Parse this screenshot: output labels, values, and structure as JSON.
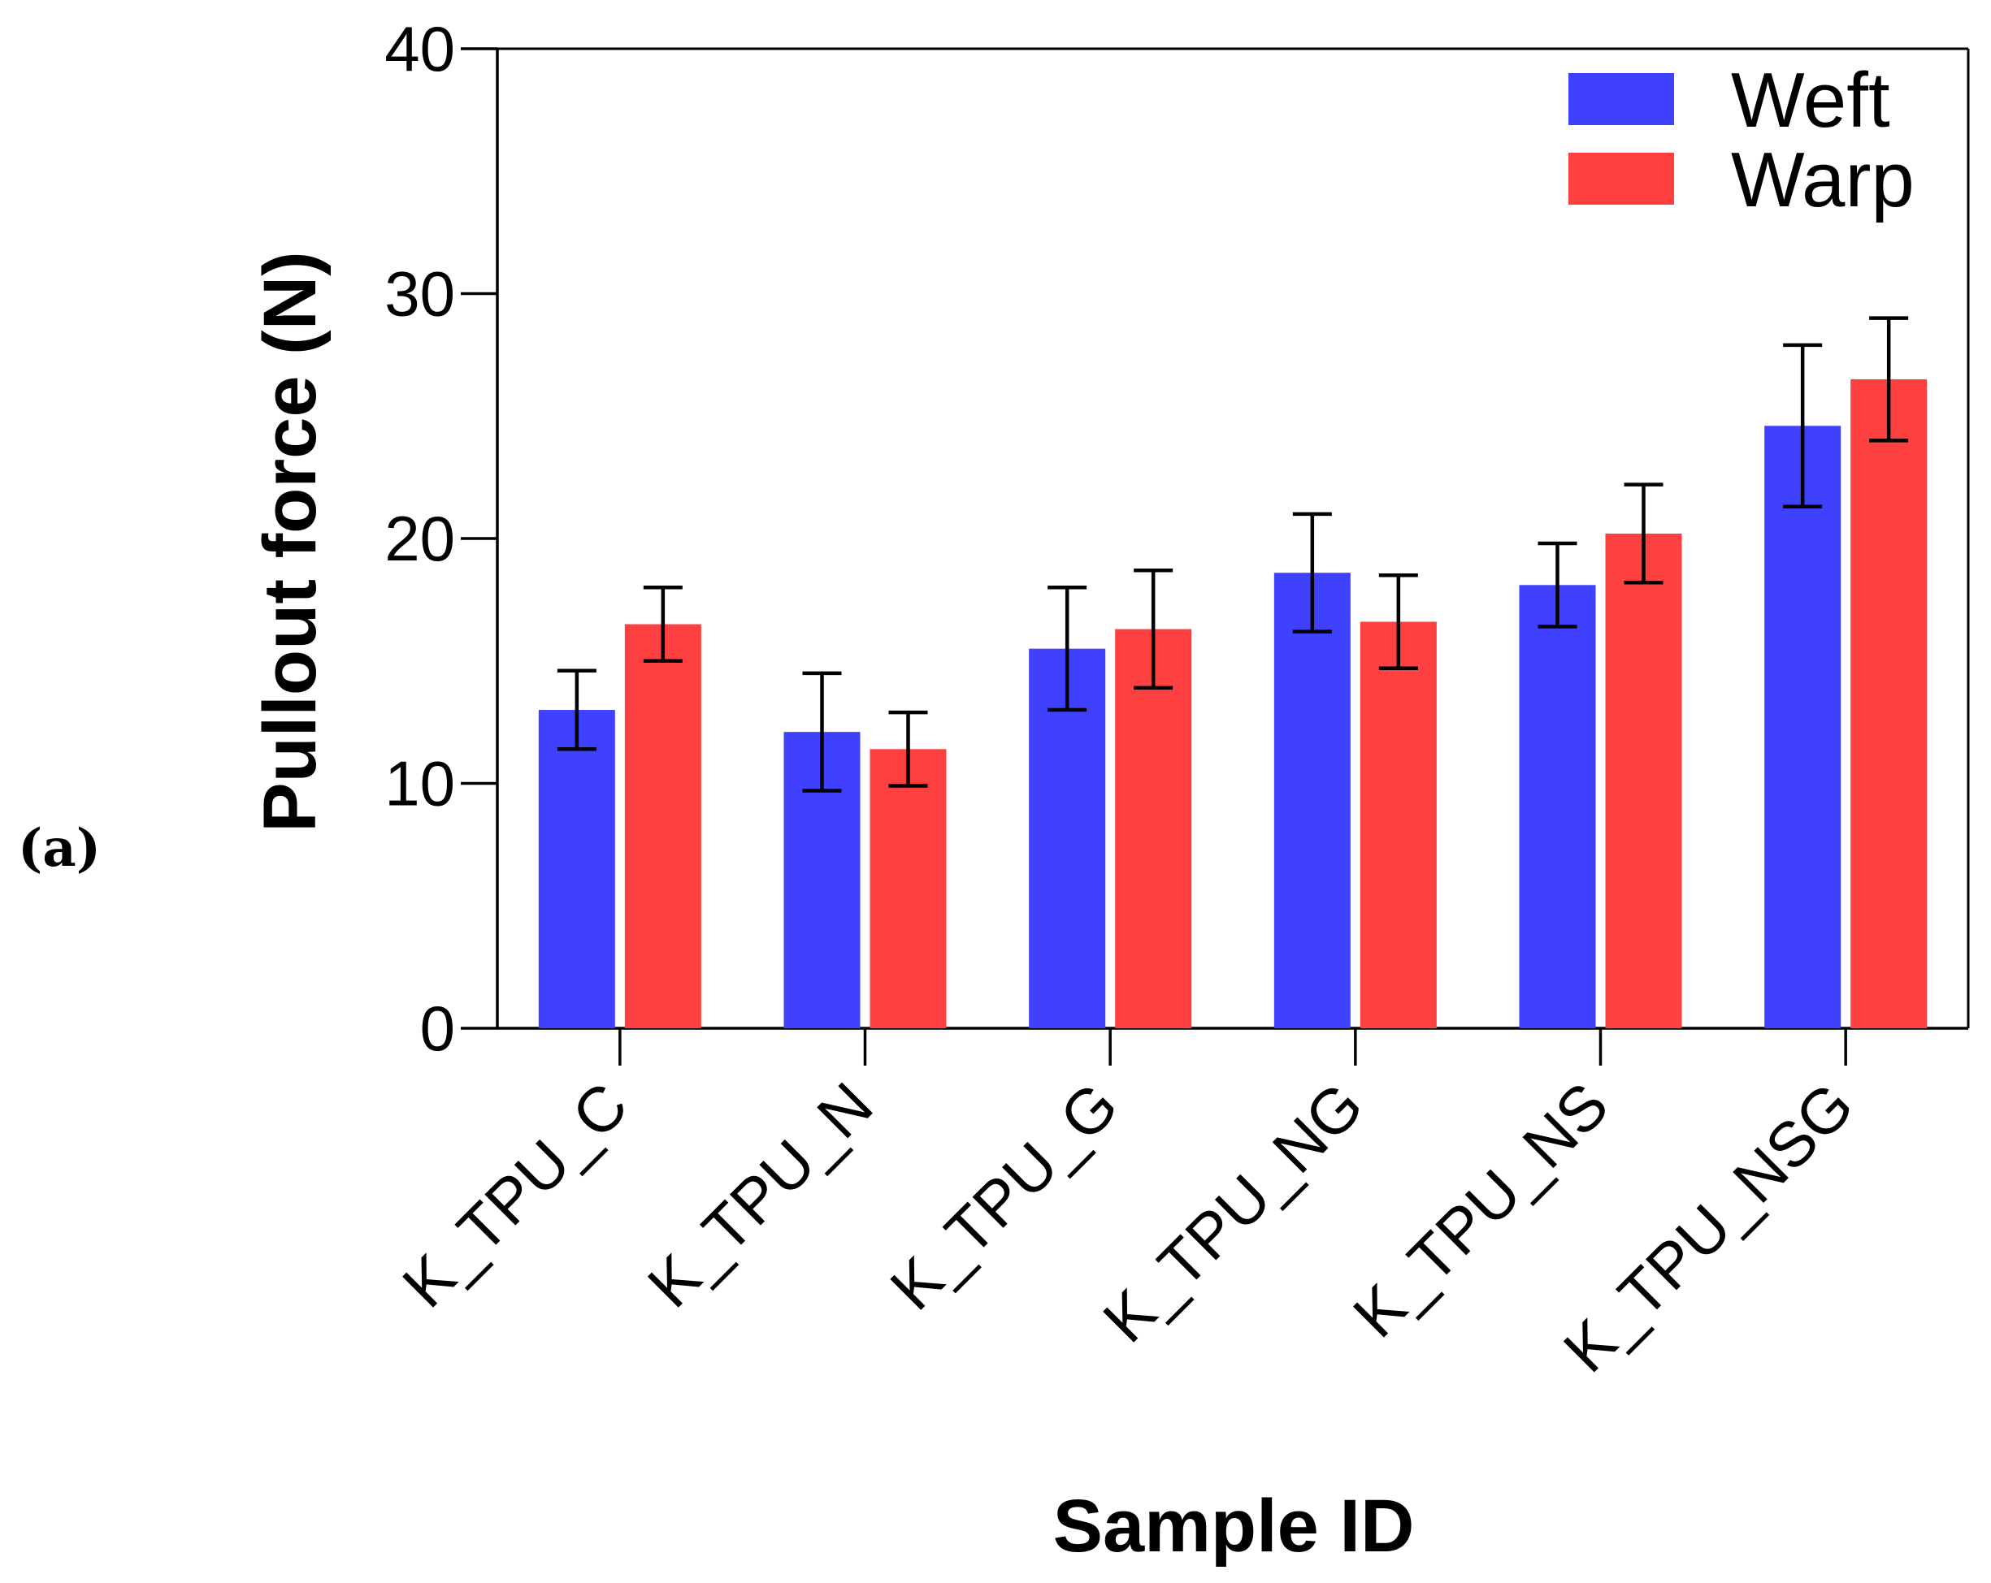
{
  "panel_label": "(a)",
  "colors": {
    "weft": "#4040ff",
    "warp": "#ff4040",
    "axis": "#000000"
  },
  "chart_data": {
    "type": "bar",
    "title": "",
    "xlabel": "Sample ID",
    "ylabel": "Pullout force (N)",
    "ylim": [
      0,
      40
    ],
    "yticks": [
      0,
      10,
      20,
      30,
      40
    ],
    "ytick_labels": [
      "0",
      "10",
      "20",
      "30",
      "40"
    ],
    "legend_position": "top-right",
    "categories": [
      "K_TPU_C",
      "K_TPU_N",
      "K_TPU_G",
      "K_TPU_NG",
      "K_TPU_NS",
      "K_TPU_NSG"
    ],
    "series": [
      {
        "name": "Weft",
        "color": "#4040ff",
        "values": [
          13.0,
          12.1,
          15.5,
          18.6,
          18.1,
          24.6
        ],
        "errors": [
          1.6,
          2.4,
          2.5,
          2.4,
          1.7,
          3.3
        ]
      },
      {
        "name": "Warp",
        "color": "#ff4040",
        "values": [
          16.5,
          11.4,
          16.3,
          16.6,
          20.2,
          26.5
        ],
        "errors": [
          1.5,
          1.5,
          2.4,
          1.9,
          2.0,
          2.5
        ]
      }
    ]
  }
}
